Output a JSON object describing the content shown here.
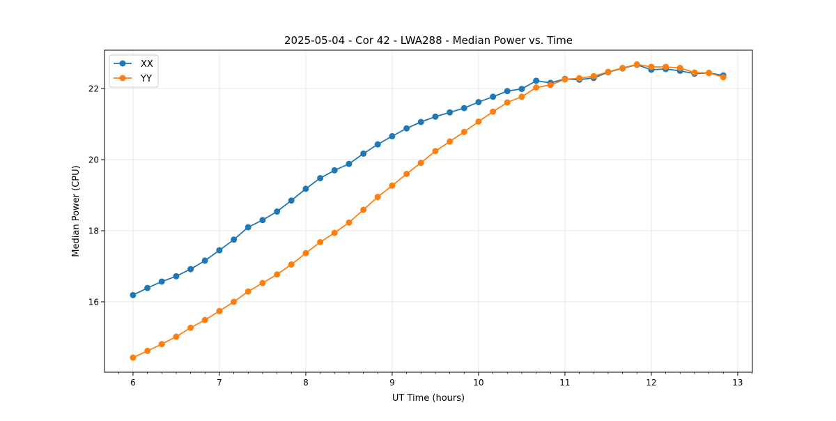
{
  "chart_data": {
    "type": "line",
    "title": "2025-05-04 - Cor 42 - LWA288 - Median Power vs. Time",
    "xlabel": "UT Time (hours)",
    "ylabel": "Median Power (CPU)",
    "xlim": [
      5.67,
      13.17
    ],
    "ylim": [
      14.02,
      23.08
    ],
    "xticks": [
      6,
      7,
      8,
      9,
      10,
      11,
      12,
      13
    ],
    "yticks": [
      16,
      18,
      20,
      22
    ],
    "grid": true,
    "legend_position": "upper-left",
    "x": [
      6.0,
      6.167,
      6.333,
      6.5,
      6.667,
      6.833,
      7.0,
      7.167,
      7.333,
      7.5,
      7.667,
      7.833,
      8.0,
      8.167,
      8.333,
      8.5,
      8.667,
      8.833,
      9.0,
      9.167,
      9.333,
      9.5,
      9.667,
      9.833,
      10.0,
      10.167,
      10.333,
      10.5,
      10.667,
      10.833,
      11.0,
      11.167,
      11.333,
      11.5,
      11.667,
      11.833,
      12.0,
      12.167,
      12.333,
      12.5,
      12.667,
      12.833
    ],
    "series": [
      {
        "name": "XX",
        "color": "#1f77b4",
        "values": [
          16.19,
          16.39,
          16.57,
          16.72,
          16.92,
          17.16,
          17.45,
          17.75,
          18.1,
          18.3,
          18.54,
          18.85,
          19.18,
          19.48,
          19.7,
          19.88,
          20.17,
          20.43,
          20.66,
          20.88,
          21.06,
          21.21,
          21.33,
          21.45,
          21.62,
          21.77,
          21.93,
          21.99,
          22.22,
          22.16,
          22.27,
          22.25,
          22.3,
          22.46,
          22.57,
          22.67,
          22.53,
          22.55,
          22.5,
          22.42,
          22.44,
          22.37
        ]
      },
      {
        "name": "YY",
        "color": "#ff7f0e",
        "values": [
          14.43,
          14.62,
          14.81,
          15.02,
          15.27,
          15.49,
          15.74,
          16.0,
          16.29,
          16.53,
          16.77,
          17.05,
          17.37,
          17.68,
          17.94,
          18.23,
          18.59,
          18.95,
          19.27,
          19.6,
          19.91,
          20.24,
          20.51,
          20.78,
          21.07,
          21.35,
          21.61,
          21.77,
          22.03,
          22.1,
          22.26,
          22.29,
          22.35,
          22.47,
          22.58,
          22.68,
          22.61,
          22.61,
          22.58,
          22.45,
          22.44,
          22.32
        ]
      }
    ]
  }
}
